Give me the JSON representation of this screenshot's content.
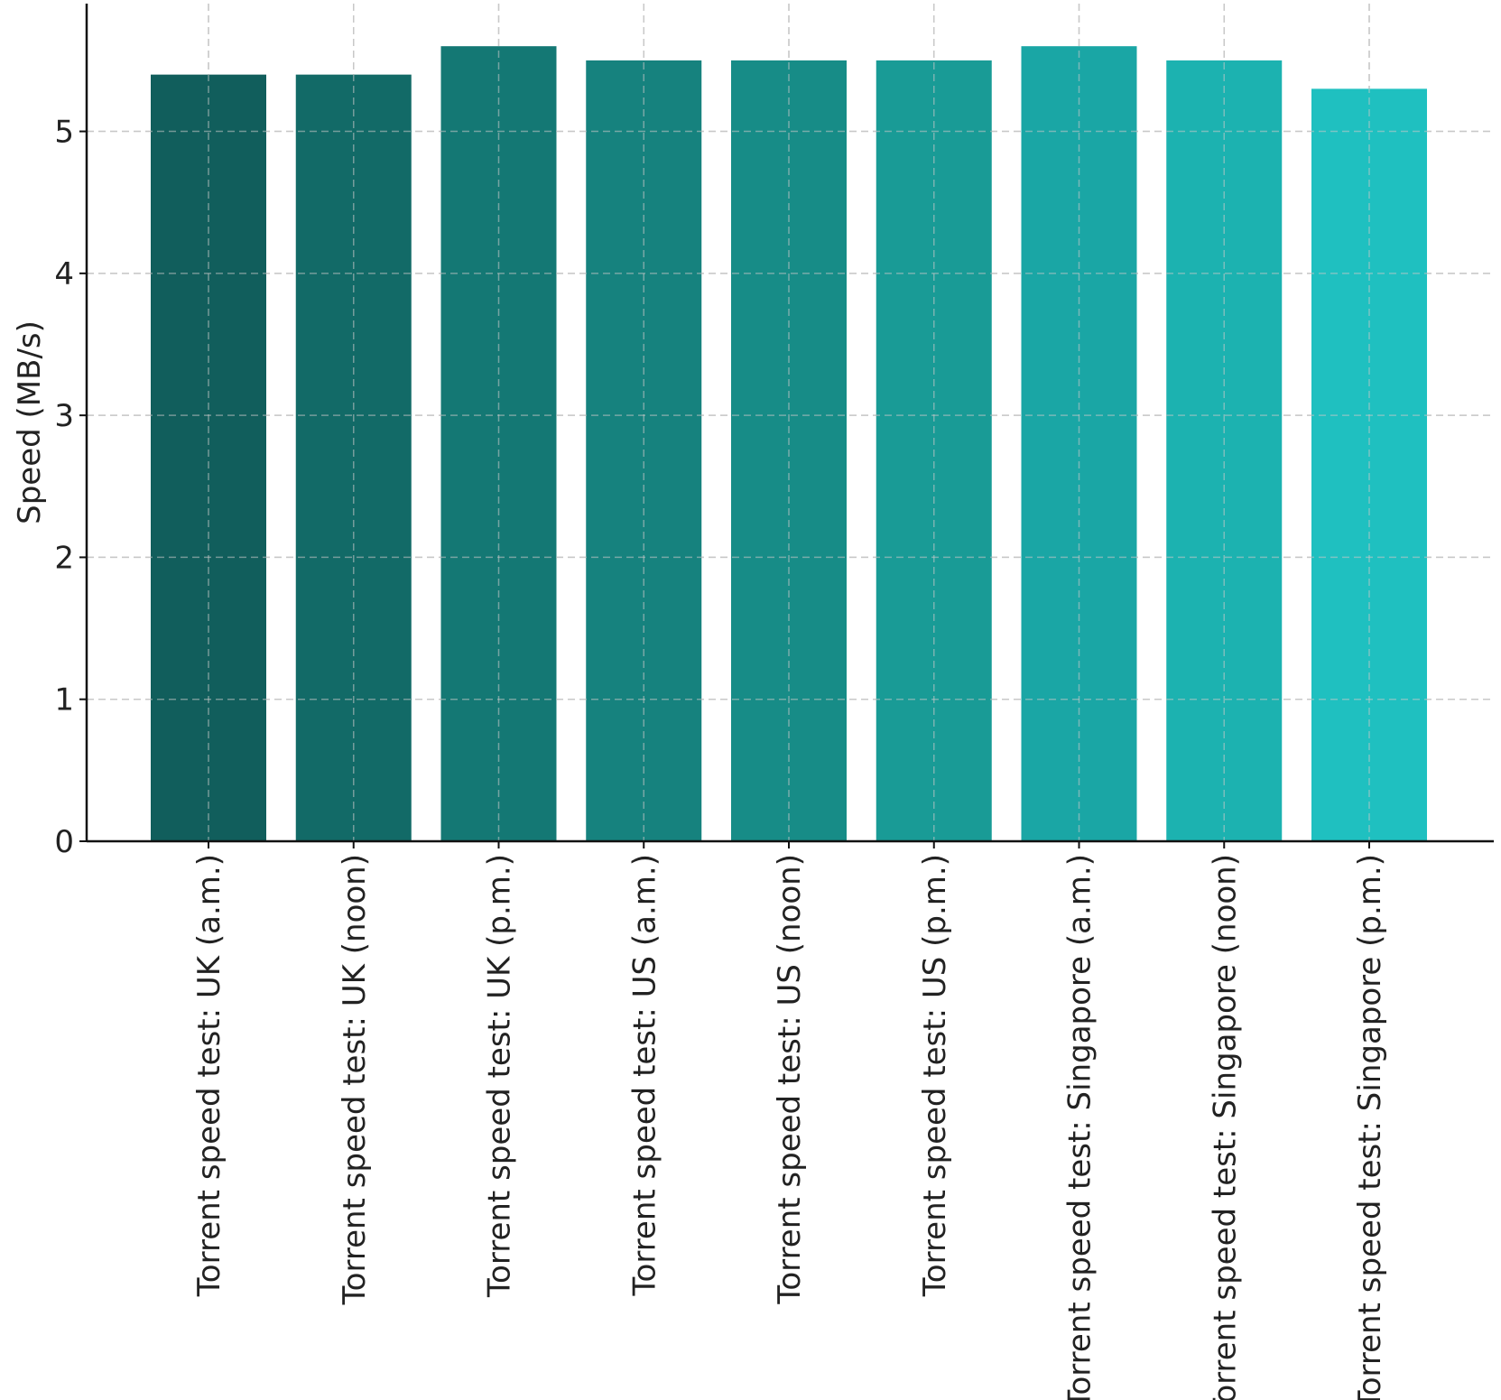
{
  "chart_data": {
    "type": "bar",
    "title": "",
    "xlabel": "",
    "ylabel": "Speed (MB/s)",
    "ylim": [
      0,
      5.9
    ],
    "yticks": [
      0,
      1,
      2,
      3,
      4,
      5
    ],
    "grid": true,
    "categories": [
      "Torrent speed test: UK (a.m.)",
      "Torrent speed test: UK (noon)",
      "Torrent speed test: UK (p.m.)",
      "Torrent speed test: US (a.m.)",
      "Torrent speed test: US (noon)",
      "Torrent speed test: US (p.m.)",
      "Torrent speed test: Singapore (a.m.)",
      "Torrent speed test: Singapore (noon)",
      "Torrent speed test: Singapore (p.m.)"
    ],
    "values": [
      5.4,
      5.4,
      5.6,
      5.5,
      5.5,
      5.5,
      5.6,
      5.5,
      5.3
    ],
    "colors": [
      "#115e5c",
      "#126a67",
      "#147874",
      "#16827e",
      "#178c87",
      "#199b96",
      "#1aa6a5",
      "#1cb2b0",
      "#1fc0c0"
    ]
  }
}
